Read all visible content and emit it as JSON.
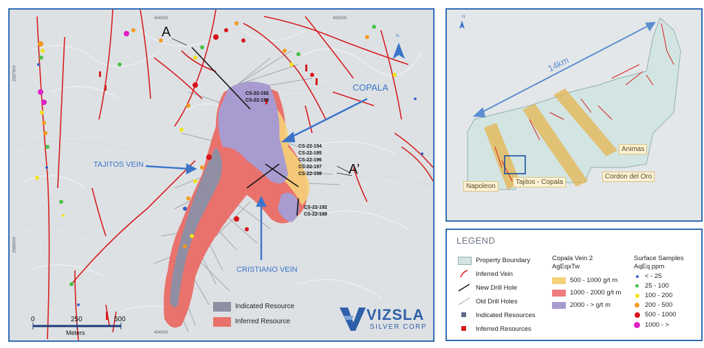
{
  "main_map": {
    "section_labels": {
      "start": "A",
      "end": "A’"
    },
    "grid_labels": {
      "x_top_1": "404000",
      "x_top_2": "405000",
      "x_bottom_1": "404000",
      "y_left_1": "2587500",
      "y_left_2": "2586000"
    },
    "vein_labels": {
      "copala": "COPALA",
      "tajitos": "TAJITOS VEIN",
      "cristiano": "CRISTIANO VEIN"
    },
    "drill_labels": {
      "north_group": [
        "CS-22-192",
        "CS-22-199"
      ],
      "middle_group": [
        "CS-22-194",
        "CS-22-195",
        "CS-22-196",
        "CS-22-197",
        "CS-22-198"
      ],
      "south_group": [
        "CS-22-192",
        "CS-22-199"
      ]
    },
    "resource_legend": {
      "indicated": "Indicated Resource",
      "inferred": "Inferred Resource"
    },
    "scale_bar": {
      "ticks": [
        "0",
        "250",
        "500"
      ],
      "unit": "Meters"
    },
    "north_label": "N",
    "logo": {
      "name": "VIZSLA",
      "sub": "SILVER CORP"
    }
  },
  "overview_map": {
    "distance_label": "14km",
    "zone_labels": {
      "animas": "Animas",
      "cordon": "Cordon del Oro",
      "napoleon": "Napoleon",
      "tajitos_copala": "Tajitos - Copala"
    },
    "north_label": "N"
  },
  "legend": {
    "title": "LEGEND",
    "items": [
      "Property Boundary",
      "Inferred Vein",
      "New Drill Hole",
      "Old Drill Holes",
      "Indicated Resources",
      "Inferred Resources"
    ],
    "vein_heading": [
      "Copala Vein 2",
      "AgEqxTw"
    ],
    "vein_classes": [
      {
        "label": "500 - 1000 g/t m",
        "color": "#f5d27a"
      },
      {
        "label": "1000 - 2000 g/t m",
        "color": "#ee7d7d"
      },
      {
        "label": "2000 - > g/t m",
        "color": "#a89bd0"
      }
    ],
    "samples_heading": [
      "Surface Samples",
      "AqEq ppm"
    ],
    "sample_classes": [
      {
        "label": "< - 25",
        "color": "#3a5fc8"
      },
      {
        "label": "25 - 100",
        "color": "#4cc24c"
      },
      {
        "label": "100 - 200",
        "color": "#f2e21a"
      },
      {
        "label": "200 - 500",
        "color": "#f39a1e"
      },
      {
        "label": "500 - 1000",
        "color": "#d8141a"
      },
      {
        "label": "1000 - >",
        "color": "#e020c8"
      }
    ]
  },
  "colors": {
    "border": "#2f6bb3",
    "vein_red": "#d61c1c",
    "indicated": "#8f8ea2",
    "inferred": "#e9726c",
    "arrow_blue": "#3a74c9"
  }
}
